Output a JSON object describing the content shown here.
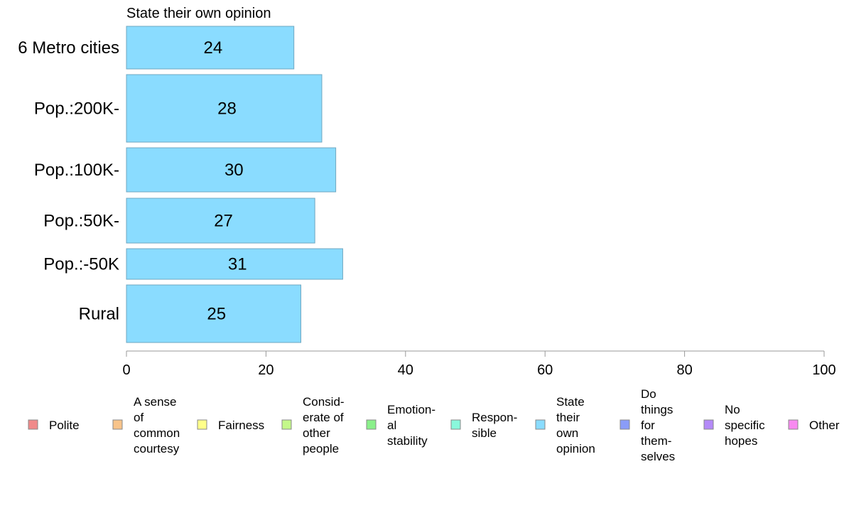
{
  "chart_data": {
    "type": "bar",
    "orientation": "horizontal",
    "title": "State their own opinion",
    "categories": [
      "6 Metro cities",
      "Pop.:200K-",
      "Pop.:100K-",
      "Pop.:50K-",
      "Pop.:-50K",
      "Rural"
    ],
    "values": [
      24,
      28,
      30,
      27,
      31,
      25
    ],
    "bar_value_labels": [
      "24",
      "28",
      "30",
      "27",
      "31",
      "25"
    ],
    "bar_color": "#8adcff",
    "bar_stroke": "#6fa7c0",
    "variable_bar_width": true,
    "xlim": [
      0,
      100
    ],
    "xticks": [
      0,
      20,
      40,
      60,
      80,
      100
    ],
    "xtick_labels": [
      "0",
      "20",
      "40",
      "60",
      "80",
      "100"
    ],
    "grid": false,
    "legend_position": "bottom",
    "legend": [
      {
        "label": "Polite",
        "color": "#f08a8a"
      },
      {
        "label": "A sense of common courtesy",
        "color": "#f8c48a"
      },
      {
        "label": "Fairness",
        "color": "#ffff8a"
      },
      {
        "label": "Consid-erate of other people",
        "color": "#c4f88a"
      },
      {
        "label": "Emotion-al stability",
        "color": "#8af08a"
      },
      {
        "label": "Respon-sible",
        "color": "#8af8dc"
      },
      {
        "label": "State their own opinion",
        "color": "#8adcff"
      },
      {
        "label": "Do things for them-selves",
        "color": "#8a9cf8"
      },
      {
        "label": "No specific hopes",
        "color": "#b48af8"
      },
      {
        "label": "Other",
        "color": "#f88af0"
      }
    ]
  },
  "legend_lines": [
    [
      "Polite"
    ],
    [
      "A sense",
      "of",
      "common",
      "courtesy"
    ],
    [
      "Fairness"
    ],
    [
      "Consid-",
      "erate of",
      "other",
      "people"
    ],
    [
      "Emotion-",
      "al",
      "stability"
    ],
    [
      "Respon-",
      "sible"
    ],
    [
      "State",
      "their",
      "own",
      "opinion"
    ],
    [
      "Do",
      "things",
      "for",
      "them-",
      "selves"
    ],
    [
      "No",
      "specific",
      "hopes"
    ],
    [
      "Other"
    ]
  ]
}
